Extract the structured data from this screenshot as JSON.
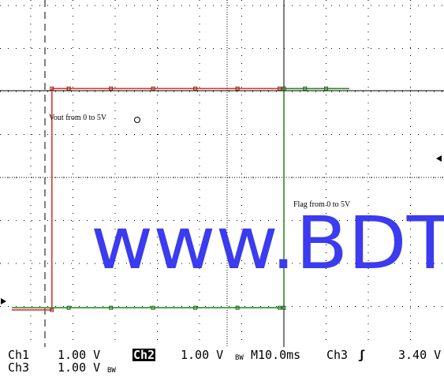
{
  "chart_data": {
    "type": "line",
    "title": "",
    "xlabel": "",
    "ylabel": "",
    "timebase": "M10.0ms",
    "x_unit": "ms",
    "x_per_division": 10.0,
    "xlim": [
      -64.5,
      15.5
    ],
    "grid": true,
    "divisions": {
      "horizontal": 10,
      "vertical": 8
    },
    "series": [
      {
        "channel": "Ch1",
        "color": "#e0342f",
        "scale": "1.00 V",
        "annotation": "Vout from 0 to 5V",
        "x": [
          -64.5,
          -55.0,
          -55.0,
          -51.0,
          -41.0,
          -31.0,
          -21.0,
          -11.0,
          -1.0,
          0.0,
          15.5
        ],
        "y_div": [
          -5.1,
          -5.1,
          0.05,
          0.05,
          0.05,
          0.05,
          0.05,
          0.05,
          0.05,
          0.05,
          0.05
        ]
      },
      {
        "channel": "Ch3",
        "color": "#2e8b2e",
        "scale": "1.00 V",
        "annotation": "Flag from 0 to 5V",
        "x": [
          -64.5,
          -51.0,
          -41.0,
          -31.0,
          -21.0,
          -11.0,
          -1.0,
          0.0,
          0.0,
          5.0,
          10.0,
          15.5
        ],
        "y_div": [
          -5.05,
          -5.05,
          -5.05,
          -5.05,
          -5.05,
          -5.05,
          -5.05,
          -5.05,
          0.05,
          0.05,
          0.05,
          0.05
        ]
      }
    ],
    "trigger": {
      "channel": "Ch3",
      "slope": "rising",
      "level": "3.40 V"
    }
  },
  "status": {
    "ch1_label": "Ch1",
    "ch1_scale": "1.00 V",
    "ch2_label": "Ch2",
    "ch2_scale": "1.00 V",
    "bw_mark": "BW",
    "timebase": "M10.0ms",
    "trig_channel": "Ch3",
    "trig_icon": "ʃ",
    "trig_level": "3.40 V",
    "ch3_label": "Ch3",
    "ch3_scale": "1.00 V",
    "bw_mark2": "BW"
  },
  "watermark": {
    "text": "www.BDT",
    "color": "#3b3bf0"
  },
  "colors": {
    "grid": "#000000",
    "ch1": "#e0342f",
    "ch3": "#2e8b2e"
  }
}
